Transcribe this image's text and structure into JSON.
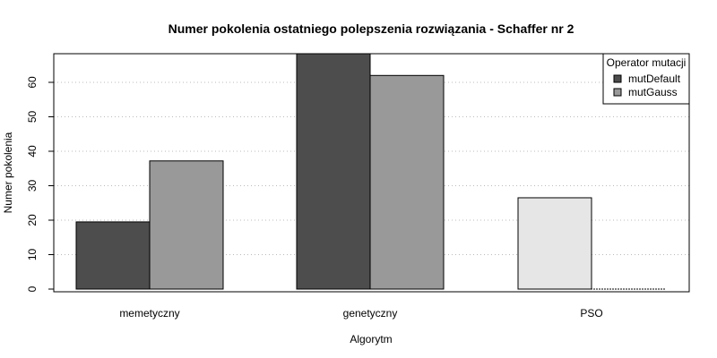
{
  "chart_data": {
    "type": "bar",
    "title": "Numer pokolenia ostatniego polepszenia rozwiązania - Schaffer nr 2",
    "xlabel": "Algorytm",
    "ylabel": "Numer pokolenia",
    "categories": [
      "memetyczny",
      "genetyczny",
      "PSO"
    ],
    "ylim": [
      0,
      68.5
    ],
    "yticks": [
      0,
      10,
      20,
      30,
      40,
      50,
      60
    ],
    "grid": "horizontal-dotted",
    "legend": {
      "title": "Operator mutacji",
      "position": "top-right",
      "entries": [
        {
          "label": "mutDefault",
          "color": "#4d4d4d"
        },
        {
          "label": "mutGauss",
          "color": "#999999"
        }
      ]
    },
    "series": [
      {
        "name": "mutDefault",
        "color": "#4d4d4d",
        "values": [
          19.5,
          68.5,
          null
        ]
      },
      {
        "name": "mutGauss",
        "color": "#999999",
        "values": [
          37.2,
          62,
          null
        ]
      }
    ],
    "extra_bars": [
      {
        "category": "PSO",
        "value": 26.5,
        "color": "#e6e6e6"
      }
    ]
  }
}
